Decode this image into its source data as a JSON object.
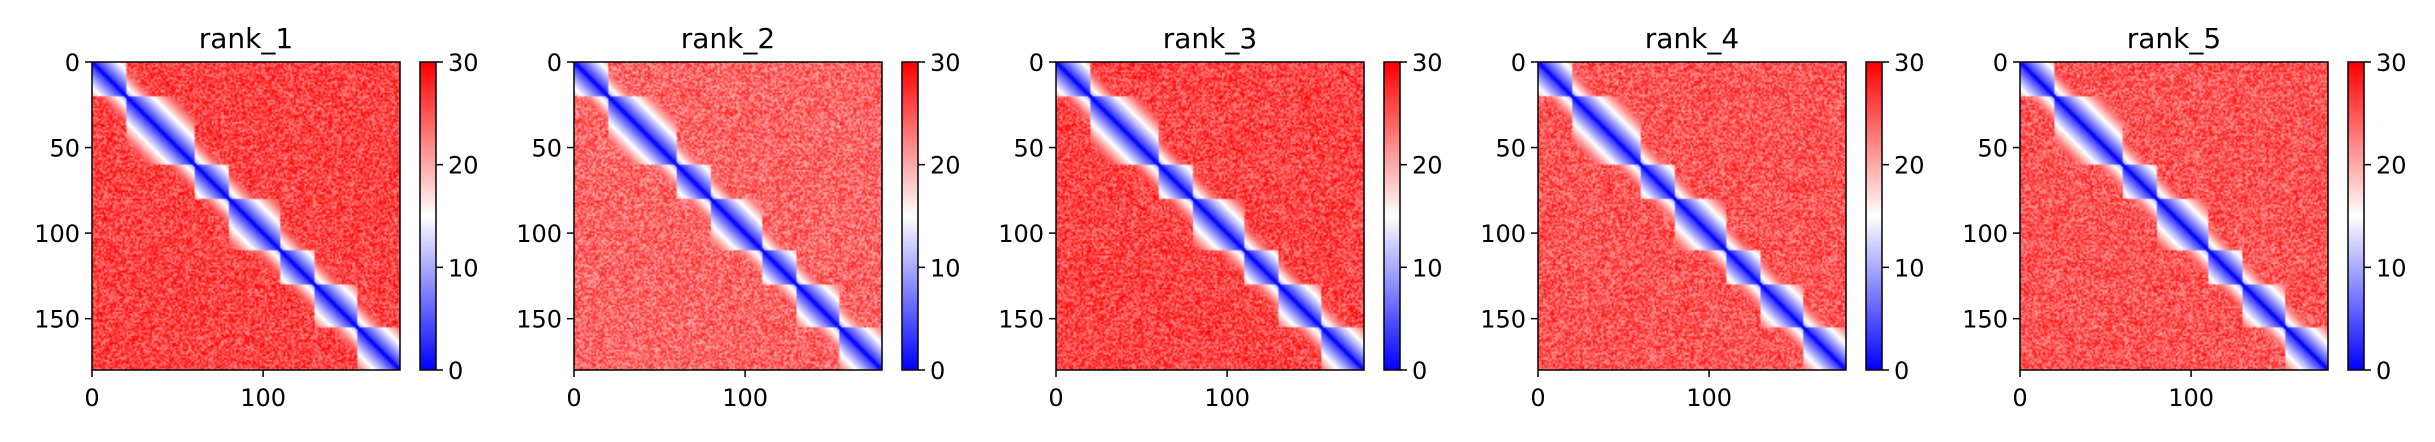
{
  "chart_data": {
    "type": "heatmap",
    "colormap": "bwr",
    "colors": {
      "low": "#0000ff",
      "mid": "#ffffff",
      "high": "#ff0000"
    },
    "color_range": [
      0,
      30
    ],
    "colorbar_ticks": [
      "0",
      "10",
      "20",
      "30"
    ],
    "matrix_size": 180,
    "x_ticks": [
      "0",
      "100"
    ],
    "y_ticks": [
      "0",
      "50",
      "100",
      "150"
    ],
    "x_tick_values": [
      0,
      100
    ],
    "y_tick_values": [
      0,
      50,
      100,
      150
    ],
    "domain_boundaries": [
      0,
      20,
      60,
      80,
      110,
      130,
      155,
      180
    ],
    "panels": [
      {
        "title": "rank_1",
        "offdiag_level": 26
      },
      {
        "title": "rank_2",
        "offdiag_level": 24
      },
      {
        "title": "rank_3",
        "offdiag_level": 26
      },
      {
        "title": "rank_4",
        "offdiag_level": 25
      },
      {
        "title": "rank_5",
        "offdiag_level": 25
      }
    ]
  }
}
